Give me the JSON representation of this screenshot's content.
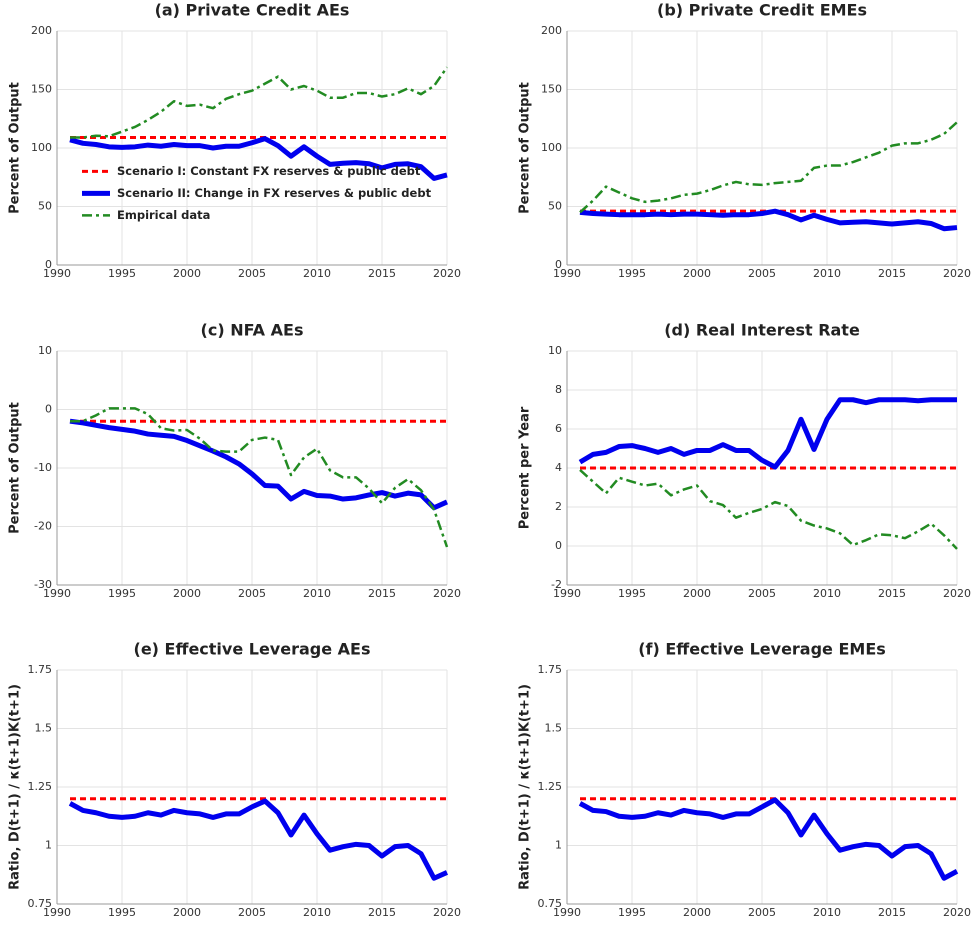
{
  "chart_data": [
    {
      "type": "line",
      "title": "(a) Private Credit AEs",
      "ylabel": "Percent of Output",
      "x": [
        1991,
        1992,
        1993,
        1994,
        1995,
        1996,
        1997,
        1998,
        1999,
        2000,
        2001,
        2002,
        2003,
        2004,
        2005,
        2006,
        2007,
        2008,
        2009,
        2010,
        2011,
        2012,
        2013,
        2014,
        2015,
        2016,
        2017,
        2018,
        2019,
        2020
      ],
      "xlim": [
        1990,
        2020
      ],
      "xticks": [
        1990,
        1995,
        2000,
        2005,
        2010,
        2015,
        2020
      ],
      "ylim": [
        0,
        200
      ],
      "yticks": [
        0,
        50,
        100,
        150,
        200
      ],
      "grid": true,
      "legend": "center left",
      "series": [
        {
          "name": "Scenario I: Constant FX reserves & public debt",
          "color": "#ff0000",
          "style": "dashed",
          "values": [
            109,
            109,
            109,
            109,
            109,
            109,
            109,
            109,
            109,
            109,
            109,
            109,
            109,
            109,
            109,
            109,
            109,
            109,
            109,
            109,
            109,
            109,
            109,
            109,
            109,
            109,
            109,
            109,
            109,
            109
          ]
        },
        {
          "name": "Scenario II: Change in FX reserves & public debt",
          "color": "#0000ee",
          "style": "solid",
          "values": [
            107,
            104,
            103,
            101,
            100.5,
            101,
            102.5,
            101.5,
            103,
            102,
            102,
            100,
            101.5,
            101.5,
            104.5,
            108,
            102,
            93,
            101,
            93,
            86,
            87,
            87.5,
            86.5,
            83,
            86,
            86.5,
            84,
            74,
            77
          ]
        },
        {
          "name": "Empirical data",
          "color": "#228b22",
          "style": "dashdot",
          "values": [
            109,
            109,
            110.5,
            110,
            114,
            118,
            124,
            131,
            140,
            136,
            137,
            134,
            142,
            146,
            149,
            155,
            161,
            150,
            153,
            149,
            143,
            143,
            147,
            147,
            144,
            146,
            151,
            146,
            153,
            169
          ]
        }
      ]
    },
    {
      "type": "line",
      "title": "(b) Private Credit EMEs",
      "ylabel": "Percent of Output",
      "x": [
        1991,
        1992,
        1993,
        1994,
        1995,
        1996,
        1997,
        1998,
        1999,
        2000,
        2001,
        2002,
        2003,
        2004,
        2005,
        2006,
        2007,
        2008,
        2009,
        2010,
        2011,
        2012,
        2013,
        2014,
        2015,
        2016,
        2017,
        2018,
        2019,
        2020
      ],
      "xlim": [
        1990,
        2020
      ],
      "xticks": [
        1990,
        1995,
        2000,
        2005,
        2010,
        2015,
        2020
      ],
      "ylim": [
        0,
        200
      ],
      "yticks": [
        0,
        50,
        100,
        150,
        200
      ],
      "grid": true,
      "series": [
        {
          "color": "#ff0000",
          "style": "dashed",
          "values": [
            46,
            46,
            46,
            46,
            46,
            46,
            46,
            46,
            46,
            46,
            46,
            46,
            46,
            46,
            46,
            46,
            46,
            46,
            46,
            46,
            46,
            46,
            46,
            46,
            46,
            46,
            46,
            46,
            46,
            46
          ]
        },
        {
          "color": "#0000ee",
          "style": "solid",
          "values": [
            45,
            44,
            43.5,
            43,
            43,
            43,
            43.5,
            43,
            43.5,
            43.5,
            43,
            42.5,
            43,
            43,
            44,
            46,
            43,
            38.5,
            42.5,
            39,
            36,
            36.5,
            37,
            36,
            35,
            36,
            37,
            35.5,
            31,
            32
          ]
        },
        {
          "color": "#228b22",
          "style": "dashdot",
          "values": [
            45,
            55,
            67,
            62,
            57,
            54,
            55,
            57,
            60,
            61,
            64,
            68,
            71,
            69,
            68.5,
            70,
            71,
            72,
            83,
            85,
            85,
            88,
            92,
            96,
            102,
            104,
            104,
            107,
            112,
            122
          ]
        }
      ]
    },
    {
      "type": "line",
      "title": "(c) NFA AEs",
      "ylabel": "Percent of Output",
      "x": [
        1991,
        1992,
        1993,
        1994,
        1995,
        1996,
        1997,
        1998,
        1999,
        2000,
        2001,
        2002,
        2003,
        2004,
        2005,
        2006,
        2007,
        2008,
        2009,
        2010,
        2011,
        2012,
        2013,
        2014,
        2015,
        2016,
        2017,
        2018,
        2019,
        2020
      ],
      "xlim": [
        1990,
        2020
      ],
      "xticks": [
        1990,
        1995,
        2000,
        2005,
        2010,
        2015,
        2020
      ],
      "ylim": [
        -30,
        10
      ],
      "yticks": [
        -30,
        -20,
        -10,
        0,
        10
      ],
      "grid": true,
      "series": [
        {
          "color": "#ff0000",
          "style": "dashed",
          "values": [
            -2,
            -2,
            -2,
            -2,
            -2,
            -2,
            -2,
            -2,
            -2,
            -2,
            -2,
            -2,
            -2,
            -2,
            -2,
            -2,
            -2,
            -2,
            -2,
            -2,
            -2,
            -2,
            -2,
            -2,
            -2,
            -2,
            -2,
            -2,
            -2,
            -2
          ]
        },
        {
          "color": "#0000ee",
          "style": "solid",
          "values": [
            -2,
            -2.3,
            -2.7,
            -3.1,
            -3.4,
            -3.7,
            -4.2,
            -4.4,
            -4.6,
            -5.3,
            -6.2,
            -7.1,
            -8.1,
            -9.3,
            -11,
            -13,
            -13.1,
            -15.3,
            -14,
            -14.7,
            -14.8,
            -15.3,
            -15.1,
            -14.6,
            -14.2,
            -14.8,
            -14.3,
            -14.6,
            -16.8,
            -15.8
          ]
        },
        {
          "color": "#228b22",
          "style": "dashdot",
          "values": [
            -2,
            -2,
            -1,
            0.2,
            0.2,
            0.2,
            -0.8,
            -3.2,
            -3.6,
            -3.5,
            -5,
            -7,
            -7.2,
            -7.2,
            -5.2,
            -4.8,
            -5.2,
            -11.2,
            -8.2,
            -6.7,
            -10.4,
            -11.6,
            -11.6,
            -13.5,
            -16,
            -13.4,
            -11.9,
            -13.8,
            -17.1,
            -23.5
          ]
        }
      ]
    },
    {
      "type": "line",
      "title": "(d) Real Interest Rate",
      "ylabel": "Percent per Year",
      "x": [
        1991,
        1992,
        1993,
        1994,
        1995,
        1996,
        1997,
        1998,
        1999,
        2000,
        2001,
        2002,
        2003,
        2004,
        2005,
        2006,
        2007,
        2008,
        2009,
        2010,
        2011,
        2012,
        2013,
        2014,
        2015,
        2016,
        2017,
        2018,
        2019,
        2020
      ],
      "xlim": [
        1990,
        2020
      ],
      "xticks": [
        1990,
        1995,
        2000,
        2005,
        2010,
        2015,
        2020
      ],
      "ylim": [
        -2,
        10
      ],
      "yticks": [
        -2,
        0,
        2,
        4,
        6,
        8,
        10
      ],
      "grid": true,
      "series": [
        {
          "color": "#ff0000",
          "style": "dashed",
          "values": [
            4,
            4,
            4,
            4,
            4,
            4,
            4,
            4,
            4,
            4,
            4,
            4,
            4,
            4,
            4,
            4,
            4,
            4,
            4,
            4,
            4,
            4,
            4,
            4,
            4,
            4,
            4,
            4,
            4,
            4
          ]
        },
        {
          "color": "#0000ee",
          "style": "solid",
          "values": [
            4.3,
            4.7,
            4.8,
            5.1,
            5.15,
            5,
            4.8,
            5,
            4.7,
            4.9,
            4.9,
            5.2,
            4.9,
            4.9,
            4.4,
            4.05,
            4.9,
            6.5,
            4.95,
            6.5,
            7.5,
            7.5,
            7.35,
            7.5,
            7.5,
            7.5,
            7.45,
            7.5,
            7.5,
            7.5
          ]
        },
        {
          "color": "#228b22",
          "style": "dashdot",
          "values": [
            3.9,
            3.3,
            2.7,
            3.5,
            3.3,
            3.1,
            3.2,
            2.6,
            2.9,
            3.1,
            2.3,
            2.1,
            1.45,
            1.7,
            1.9,
            2.25,
            2.05,
            1.3,
            1.05,
            0.9,
            0.65,
            0.05,
            0.3,
            0.6,
            0.55,
            0.4,
            0.75,
            1.15,
            0.55,
            -0.15
          ]
        }
      ]
    },
    {
      "type": "line",
      "title": "(e) Effective Leverage AEs",
      "ylabel": "Ratio, D(t+1) / κ(t+1)K(t+1)",
      "x": [
        1991,
        1992,
        1993,
        1994,
        1995,
        1996,
        1997,
        1998,
        1999,
        2000,
        2001,
        2002,
        2003,
        2004,
        2005,
        2006,
        2007,
        2008,
        2009,
        2010,
        2011,
        2012,
        2013,
        2014,
        2015,
        2016,
        2017,
        2018,
        2019,
        2020
      ],
      "xlim": [
        1990,
        2020
      ],
      "xticks": [
        1990,
        1995,
        2000,
        2005,
        2010,
        2015,
        2020
      ],
      "ylim": [
        0.75,
        1.75
      ],
      "yticks": [
        0.75,
        1,
        1.25,
        1.5,
        1.75
      ],
      "grid": true,
      "series": [
        {
          "color": "#ff0000",
          "style": "dashed",
          "values": [
            1.2,
            1.2,
            1.2,
            1.2,
            1.2,
            1.2,
            1.2,
            1.2,
            1.2,
            1.2,
            1.2,
            1.2,
            1.2,
            1.2,
            1.2,
            1.2,
            1.2,
            1.2,
            1.2,
            1.2,
            1.2,
            1.2,
            1.2,
            1.2,
            1.2,
            1.2,
            1.2,
            1.2,
            1.2,
            1.2
          ]
        },
        {
          "color": "#0000ee",
          "style": "solid",
          "values": [
            1.18,
            1.15,
            1.14,
            1.125,
            1.12,
            1.125,
            1.14,
            1.13,
            1.15,
            1.14,
            1.135,
            1.12,
            1.135,
            1.135,
            1.165,
            1.19,
            1.14,
            1.045,
            1.13,
            1.05,
            0.98,
            0.995,
            1.005,
            1.0,
            0.955,
            0.995,
            1.0,
            0.965,
            0.86,
            0.885
          ]
        }
      ]
    },
    {
      "type": "line",
      "title": "(f) Effective Leverage EMEs",
      "ylabel": "Ratio, D(t+1) / κ(t+1)K(t+1)",
      "x": [
        1991,
        1992,
        1993,
        1994,
        1995,
        1996,
        1997,
        1998,
        1999,
        2000,
        2001,
        2002,
        2003,
        2004,
        2005,
        2006,
        2007,
        2008,
        2009,
        2010,
        2011,
        2012,
        2013,
        2014,
        2015,
        2016,
        2017,
        2018,
        2019,
        2020
      ],
      "xlim": [
        1990,
        2020
      ],
      "xticks": [
        1990,
        1995,
        2000,
        2005,
        2010,
        2015,
        2020
      ],
      "ylim": [
        0.75,
        1.75
      ],
      "yticks": [
        0.75,
        1,
        1.25,
        1.5,
        1.75
      ],
      "grid": true,
      "series": [
        {
          "color": "#ff0000",
          "style": "dashed",
          "values": [
            1.2,
            1.2,
            1.2,
            1.2,
            1.2,
            1.2,
            1.2,
            1.2,
            1.2,
            1.2,
            1.2,
            1.2,
            1.2,
            1.2,
            1.2,
            1.2,
            1.2,
            1.2,
            1.2,
            1.2,
            1.2,
            1.2,
            1.2,
            1.2,
            1.2,
            1.2,
            1.2,
            1.2,
            1.2,
            1.2
          ]
        },
        {
          "color": "#0000ee",
          "style": "solid",
          "values": [
            1.18,
            1.15,
            1.145,
            1.125,
            1.12,
            1.125,
            1.14,
            1.13,
            1.15,
            1.14,
            1.135,
            1.12,
            1.135,
            1.135,
            1.165,
            1.195,
            1.14,
            1.045,
            1.13,
            1.05,
            0.98,
            0.995,
            1.005,
            1.0,
            0.955,
            0.995,
            1.0,
            0.965,
            0.86,
            0.89
          ]
        }
      ]
    }
  ]
}
